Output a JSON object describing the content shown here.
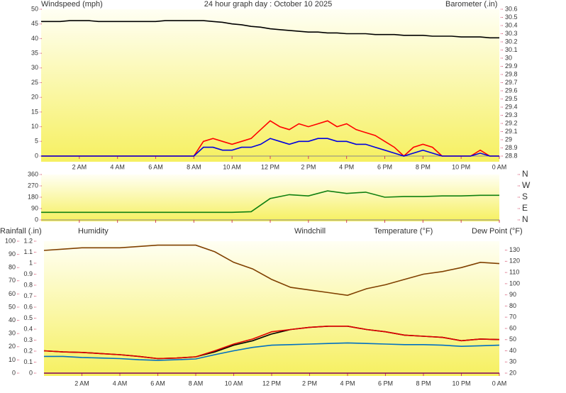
{
  "chart_data": [
    {
      "type": "line",
      "title": "24 hour graph day : October 10 2025",
      "x": [
        0,
        0.5,
        1,
        1.5,
        2,
        2.5,
        3,
        3.5,
        4,
        4.5,
        5,
        5.5,
        6,
        6.5,
        7,
        7.5,
        8,
        8.5,
        9,
        9.5,
        10,
        10.5,
        11,
        11.5,
        12,
        12.5,
        13,
        13.5,
        14,
        14.5,
        15,
        15.5,
        16,
        16.5,
        17,
        17.5,
        18,
        18.5,
        19,
        19.5,
        20,
        20.5,
        21,
        21.5,
        22,
        22.5,
        23,
        23.5,
        24
      ],
      "xlim": [
        0,
        24
      ],
      "xticks": [
        {
          "value": 2,
          "label": "2 AM"
        },
        {
          "value": 4,
          "label": "4 AM"
        },
        {
          "value": 6,
          "label": "6 AM"
        },
        {
          "value": 8,
          "label": "8 AM"
        },
        {
          "value": 10,
          "label": "10 AM"
        },
        {
          "value": 12,
          "label": "12 PM"
        },
        {
          "value": 14,
          "label": "2 PM"
        },
        {
          "value": 16,
          "label": "4 PM"
        },
        {
          "value": 18,
          "label": "6 PM"
        },
        {
          "value": 20,
          "label": "8 PM"
        },
        {
          "value": 22,
          "label": "10 PM"
        },
        {
          "value": 24,
          "label": "0 AM"
        }
      ],
      "ylim": [
        0,
        50
      ],
      "yticks": [
        0,
        5,
        10,
        15,
        20,
        25,
        30,
        35,
        40,
        45,
        50
      ],
      "y2lim": [
        28.8,
        30.6
      ],
      "y2ticks": [
        28.8,
        28.9,
        29,
        29.1,
        29.2,
        29.3,
        29.4,
        29.5,
        29.6,
        29.7,
        29.8,
        29.9,
        30,
        30.1,
        30.2,
        30.3,
        30.4,
        30.5,
        30.6
      ],
      "series": [
        {
          "name": "Windspeed (mph)",
          "color": "#ff0000",
          "values": [
            0,
            0,
            0,
            0,
            0,
            0,
            0,
            0,
            0,
            0,
            0,
            0,
            0,
            0,
            0,
            0,
            0,
            5,
            6,
            5,
            4,
            5,
            6,
            9,
            12,
            10,
            9,
            11,
            10,
            11,
            12,
            10,
            11,
            9,
            8,
            7,
            5,
            3,
            0,
            3,
            4,
            3,
            0,
            0,
            0,
            0,
            2,
            0,
            0
          ]
        },
        {
          "color": "#0000e0",
          "values": [
            0,
            0,
            0,
            0,
            0,
            0,
            0,
            0,
            0,
            0,
            0,
            0,
            0,
            0,
            0,
            0,
            0,
            3,
            3,
            2,
            2,
            3,
            3,
            4,
            6,
            5,
            4,
            5,
            5,
            6,
            6,
            5,
            5,
            4,
            4,
            3,
            2,
            1,
            0,
            1,
            2,
            1,
            0,
            0,
            0,
            0,
            1,
            0,
            0
          ]
        },
        {
          "name": "Barometer (.in)",
          "color": "#000000",
          "axis": "y2",
          "values": [
            30.45,
            30.45,
            30.45,
            30.46,
            30.46,
            30.46,
            30.45,
            30.45,
            30.45,
            30.45,
            30.45,
            30.45,
            30.45,
            30.46,
            30.46,
            30.46,
            30.46,
            30.46,
            30.45,
            30.44,
            30.42,
            30.41,
            30.39,
            30.38,
            30.36,
            30.35,
            30.34,
            30.33,
            30.32,
            30.32,
            30.31,
            30.31,
            30.3,
            30.3,
            30.3,
            30.29,
            30.29,
            30.29,
            30.28,
            30.28,
            30.28,
            30.27,
            30.27,
            30.27,
            30.26,
            30.26,
            30.26,
            30.25,
            30.25
          ]
        }
      ]
    },
    {
      "type": "line",
      "x": [
        0,
        1,
        2,
        3,
        4,
        5,
        6,
        7,
        8,
        9,
        10,
        11,
        12,
        13,
        14,
        15,
        16,
        17,
        18,
        19,
        20,
        21,
        22,
        23,
        24
      ],
      "xlim": [
        0,
        24
      ],
      "xticks": [
        {
          "value": 2,
          "label": "2 AM"
        },
        {
          "value": 4,
          "label": "4 AM"
        },
        {
          "value": 6,
          "label": "6 AM"
        },
        {
          "value": 8,
          "label": "8 AM"
        },
        {
          "value": 10,
          "label": "10 AM"
        },
        {
          "value": 12,
          "label": "12 PM"
        },
        {
          "value": 14,
          "label": "2 PM"
        },
        {
          "value": 16,
          "label": "4 PM"
        },
        {
          "value": 18,
          "label": "6 PM"
        },
        {
          "value": 20,
          "label": "8 PM"
        },
        {
          "value": 22,
          "label": "10 PM"
        },
        {
          "value": 24,
          "label": "0 AM"
        }
      ],
      "ylim": [
        0,
        360
      ],
      "yticks": [
        0,
        90,
        180,
        270,
        360
      ],
      "y2lim": [
        0,
        360
      ],
      "y2ticks": [
        {
          "value": 0,
          "label": "N"
        },
        {
          "value": 90,
          "label": "E"
        },
        {
          "value": 180,
          "label": "S"
        },
        {
          "value": 270,
          "label": "W"
        },
        {
          "value": 360,
          "label": "N"
        }
      ],
      "series": [
        {
          "color": "#108010",
          "values": [
            60,
            60,
            60,
            60,
            60,
            60,
            60,
            60,
            60,
            60,
            60,
            65,
            170,
            200,
            190,
            230,
            210,
            220,
            180,
            185,
            185,
            190,
            190,
            195,
            195
          ]
        }
      ]
    },
    {
      "type": "line",
      "x": [
        0,
        1,
        2,
        3,
        4,
        5,
        6,
        7,
        8,
        9,
        10,
        11,
        12,
        13,
        14,
        15,
        16,
        17,
        18,
        19,
        20,
        21,
        22,
        23,
        24
      ],
      "xlim": [
        0,
        24
      ],
      "xticks": [
        {
          "value": 2,
          "label": "2 AM"
        },
        {
          "value": 4,
          "label": "4 AM"
        },
        {
          "value": 6,
          "label": "6 AM"
        },
        {
          "value": 8,
          "label": "8 AM"
        },
        {
          "value": 10,
          "label": "10 AM"
        },
        {
          "value": 12,
          "label": "12 PM"
        },
        {
          "value": 14,
          "label": "2 PM"
        },
        {
          "value": 16,
          "label": "4 PM"
        },
        {
          "value": 18,
          "label": "6 PM"
        },
        {
          "value": 20,
          "label": "8 PM"
        },
        {
          "value": 22,
          "label": "10 PM"
        },
        {
          "value": 24,
          "label": "0 AM"
        }
      ],
      "ylim": [
        0,
        1.2
      ],
      "yticks": [
        0,
        0.1,
        0.2,
        0.3,
        0.4,
        0.5,
        0.6,
        0.7,
        0.8,
        0.9,
        1,
        1.1,
        1.2
      ],
      "y3lim": [
        0,
        100
      ],
      "y3ticks": [
        0,
        10,
        20,
        30,
        40,
        50,
        60,
        70,
        80,
        90,
        100
      ],
      "y2lim": [
        20,
        138
      ],
      "y2ticks": [
        20,
        30,
        40,
        50,
        60,
        70,
        80,
        90,
        100,
        110,
        120,
        130
      ],
      "series": [
        {
          "name": "Rainfall (.in)",
          "color": "#800060",
          "values": [
            0,
            0,
            0,
            0,
            0,
            0,
            0,
            0,
            0,
            0,
            0,
            0,
            0,
            0,
            0,
            0,
            0,
            0,
            0,
            0,
            0,
            0,
            0,
            0,
            0
          ]
        },
        {
          "name": "Humidity",
          "color": "#804000",
          "axis": "y3",
          "values": [
            93,
            94,
            95,
            95,
            95,
            96,
            97,
            97,
            97,
            92,
            84,
            79,
            71,
            65,
            63,
            61,
            59,
            64,
            67,
            71,
            75,
            77,
            80,
            84,
            83
          ]
        },
        {
          "name": "Windchill",
          "color": "#000000",
          "axis": "y2",
          "values": [
            40,
            39,
            38.5,
            37.5,
            36.5,
            35,
            33,
            33.5,
            34.6,
            39,
            45,
            49,
            55,
            59,
            61,
            62,
            62,
            59,
            57,
            54,
            53,
            52,
            49,
            50.5,
            50
          ]
        },
        {
          "name": "Temperature (°F)",
          "color": "#e00000",
          "axis": "y2",
          "values": [
            40,
            39,
            38.5,
            37.5,
            36.5,
            35,
            33,
            33.5,
            34.6,
            40,
            46,
            50.5,
            57,
            59,
            61,
            62,
            62,
            59,
            57,
            54,
            53,
            52,
            49,
            50.5,
            50
          ]
        },
        {
          "name": "Dew Point (°F)",
          "color": "#0070c0",
          "axis": "y2",
          "values": [
            35,
            35,
            34,
            33.5,
            33,
            32,
            31.5,
            32,
            32.7,
            36.5,
            40,
            43,
            45,
            45.5,
            46,
            46.5,
            47,
            46.5,
            46,
            45.5,
            45.5,
            45,
            44,
            44.5,
            45
          ]
        }
      ]
    }
  ]
}
